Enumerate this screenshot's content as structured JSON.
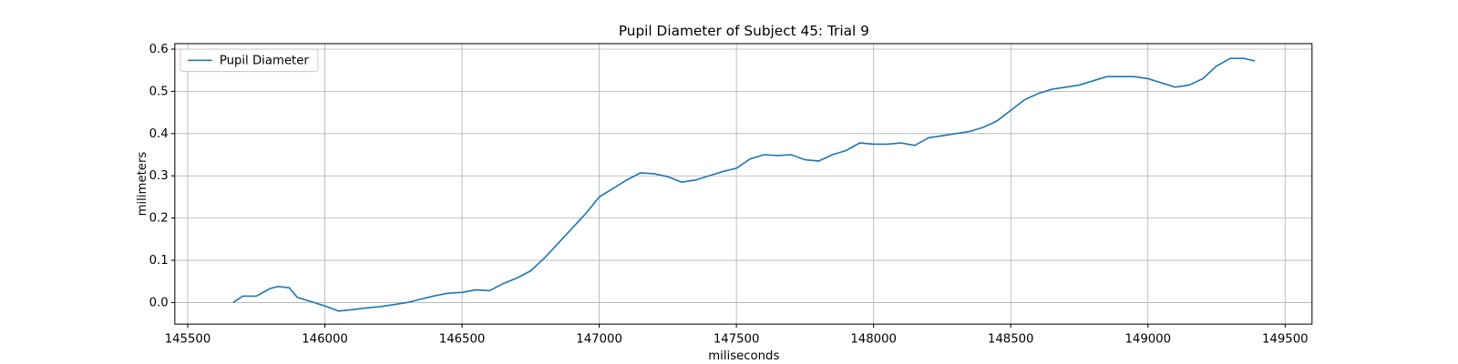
{
  "chart_data": {
    "type": "line",
    "title": "Pupil Diameter of Subject 45: Trial 9",
    "xlabel": "miliseconds",
    "ylabel": "milimeters",
    "x": [
      145666,
      145700,
      145750,
      145800,
      145830,
      145870,
      145900,
      145950,
      146000,
      146050,
      146100,
      146150,
      146200,
      146250,
      146300,
      146350,
      146400,
      146450,
      146500,
      146550,
      146600,
      146650,
      146700,
      146750,
      146800,
      146850,
      146900,
      146950,
      147000,
      147050,
      147100,
      147150,
      147200,
      147250,
      147300,
      147350,
      147400,
      147450,
      147500,
      147550,
      147600,
      147650,
      147700,
      147750,
      147800,
      147850,
      147900,
      147950,
      148000,
      148050,
      148100,
      148150,
      148200,
      148250,
      148300,
      148350,
      148400,
      148450,
      148500,
      148550,
      148600,
      148650,
      148700,
      148750,
      148800,
      148850,
      148900,
      148950,
      149000,
      149050,
      149100,
      149150,
      149200,
      149250,
      149300,
      149350,
      149390
    ],
    "series": [
      {
        "name": "Pupil Diameter",
        "color": "#1f77b4",
        "values": [
          0.0,
          0.015,
          0.015,
          0.033,
          0.038,
          0.035,
          0.012,
          0.002,
          -0.008,
          -0.02,
          -0.017,
          -0.013,
          -0.01,
          -0.005,
          0.0,
          0.008,
          0.016,
          0.022,
          0.024,
          0.03,
          0.028,
          0.045,
          0.058,
          0.075,
          0.105,
          0.14,
          0.175,
          0.21,
          0.25,
          0.27,
          0.29,
          0.307,
          0.305,
          0.298,
          0.285,
          0.29,
          0.3,
          0.31,
          0.318,
          0.34,
          0.35,
          0.348,
          0.35,
          0.338,
          0.335,
          0.35,
          0.36,
          0.378,
          0.375,
          0.375,
          0.378,
          0.372,
          0.39,
          0.395,
          0.4,
          0.405,
          0.415,
          0.43,
          0.455,
          0.48,
          0.495,
          0.505,
          0.51,
          0.515,
          0.525,
          0.535,
          0.535,
          0.535,
          0.53,
          0.52,
          0.51,
          0.515,
          0.53,
          0.56,
          0.578,
          0.578,
          0.572
        ]
      }
    ],
    "xlim": [
      145453,
      149598
    ],
    "ylim": [
      -0.051,
      0.613
    ],
    "xticks": [
      145500,
      146000,
      146500,
      147000,
      147500,
      148000,
      148500,
      149000,
      149500
    ],
    "yticks": [
      {
        "value": 0,
        "label": "0.0"
      },
      0.1,
      0.2,
      0.3,
      0.4,
      0.5,
      0.6
    ],
    "grid": true,
    "legend": "upper left"
  }
}
